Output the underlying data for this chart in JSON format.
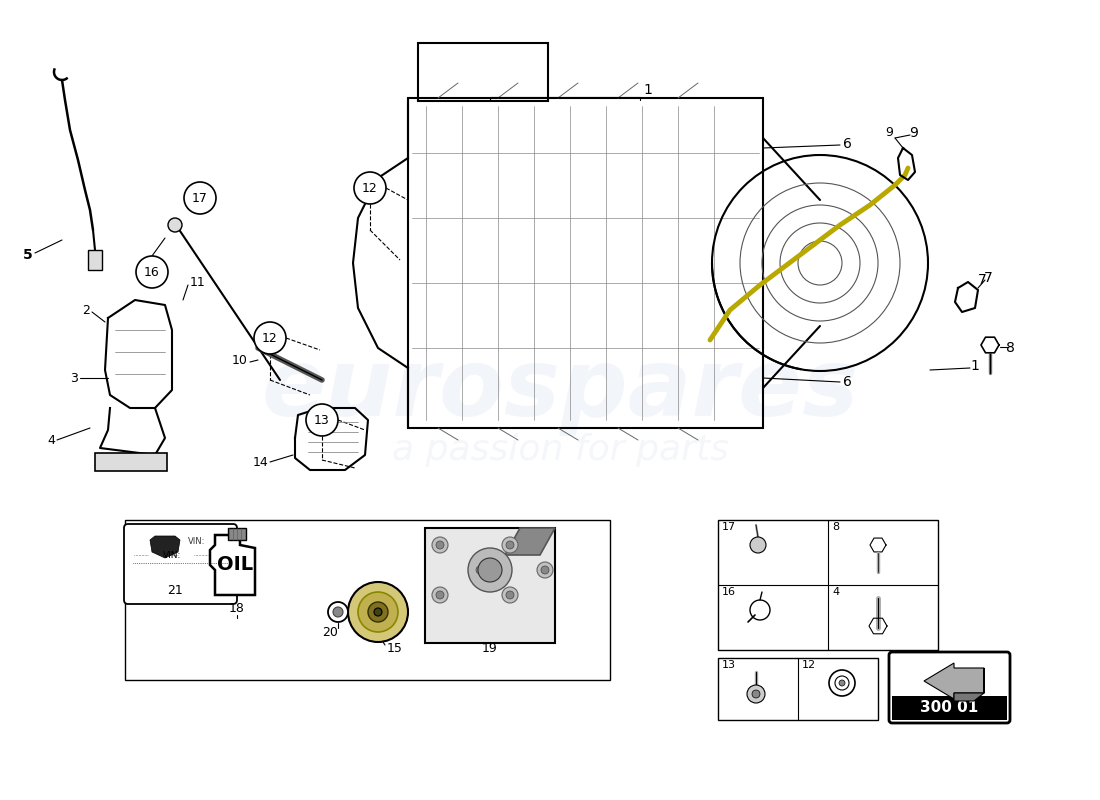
{
  "bg": "#ffffff",
  "watermark1": "eurospares",
  "watermark2": "a passion for parts",
  "part_code": "300 01",
  "yellow_color": "#c8b400",
  "grid_color": "#cccccc"
}
